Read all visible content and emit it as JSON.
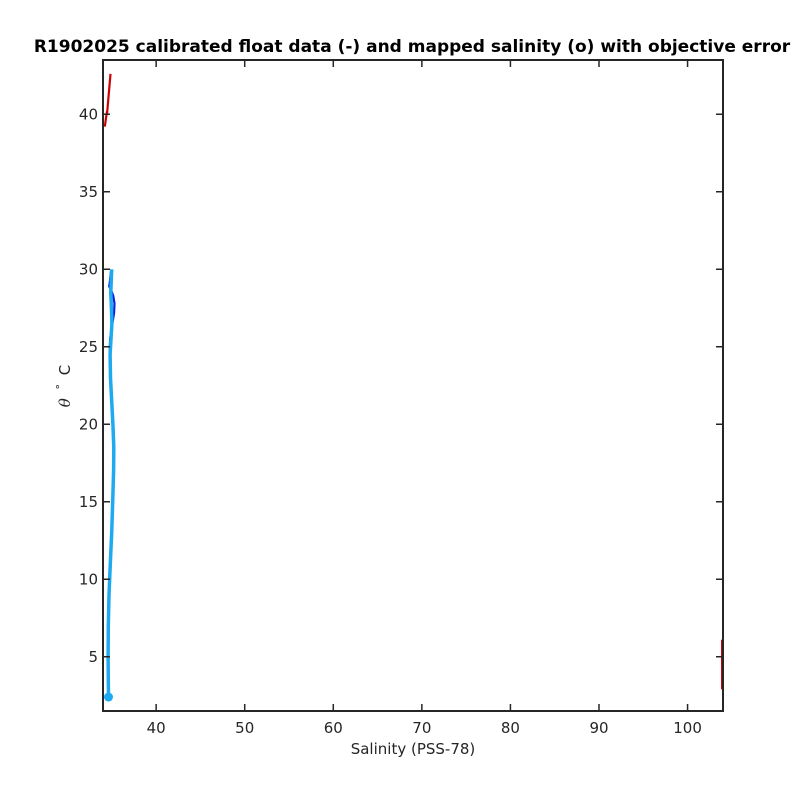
{
  "chart_data": {
    "type": "line",
    "title": "R1902025 calibrated float data (-) and mapped salinity (o) with objective error",
    "xlabel": "Salinity (PSS-78)",
    "ylabel": {
      "symbol": "θ",
      "degree": "°",
      "unit": "C"
    },
    "xlim": [
      34,
      104
    ],
    "ylim": [
      1.5,
      43.5
    ],
    "xticks": [
      40,
      50,
      60,
      70,
      80,
      90,
      100
    ],
    "yticks": [
      5,
      10,
      15,
      20,
      25,
      30,
      35,
      40
    ],
    "grid": false,
    "legend": "none",
    "colors": {
      "calibrated": "#0a1fe0",
      "mapped": "#1eaaf0",
      "error": "#cc0000",
      "axis": "#262626"
    },
    "series": [
      {
        "role": "calibrated float data",
        "style": "line",
        "points": [
          [
            34.65,
            2.4
          ],
          [
            34.62,
            3.5
          ],
          [
            34.6,
            5.0
          ],
          [
            34.62,
            7.0
          ],
          [
            34.7,
            9.0
          ],
          [
            34.85,
            11.0
          ],
          [
            35.0,
            13.0
          ],
          [
            35.12,
            15.0
          ],
          [
            35.22,
            17.0
          ],
          [
            35.25,
            18.5
          ],
          [
            35.15,
            20.0
          ],
          [
            35.0,
            21.5
          ],
          [
            34.85,
            23.0
          ],
          [
            34.75,
            24.5
          ],
          [
            34.8,
            25.5
          ],
          [
            35.0,
            26.3
          ],
          [
            35.25,
            27.2
          ],
          [
            35.3,
            27.8
          ],
          [
            35.15,
            28.3
          ],
          [
            34.95,
            28.6
          ],
          [
            34.7,
            28.9
          ],
          [
            34.8,
            29.3
          ],
          [
            34.9,
            29.9
          ]
        ]
      },
      {
        "role": "mapped salinity",
        "style": "line+marker",
        "points": [
          [
            34.62,
            2.4
          ],
          [
            34.6,
            3.5
          ],
          [
            34.58,
            5.0
          ],
          [
            34.6,
            7.0
          ],
          [
            34.68,
            9.0
          ],
          [
            34.82,
            11.0
          ],
          [
            34.98,
            13.0
          ],
          [
            35.1,
            15.0
          ],
          [
            35.2,
            17.0
          ],
          [
            35.22,
            18.5
          ],
          [
            35.12,
            20.0
          ],
          [
            34.98,
            21.5
          ],
          [
            34.85,
            23.0
          ],
          [
            34.8,
            24.5
          ],
          [
            34.9,
            25.5
          ],
          [
            35.0,
            26.5
          ],
          [
            34.95,
            27.5
          ],
          [
            34.88,
            28.5
          ],
          [
            34.95,
            29.5
          ],
          [
            34.98,
            30.0
          ]
        ]
      },
      {
        "role": "objective error",
        "style": "line",
        "segments": [
          [
            [
              34.2,
              39.2
            ],
            [
              34.45,
              40.2
            ]
          ],
          [
            [
              34.45,
              40.0
            ],
            [
              34.85,
              42.6
            ]
          ],
          [
            [
              103.9,
              2.9
            ],
            [
              103.9,
              6.1
            ]
          ]
        ]
      }
    ]
  }
}
